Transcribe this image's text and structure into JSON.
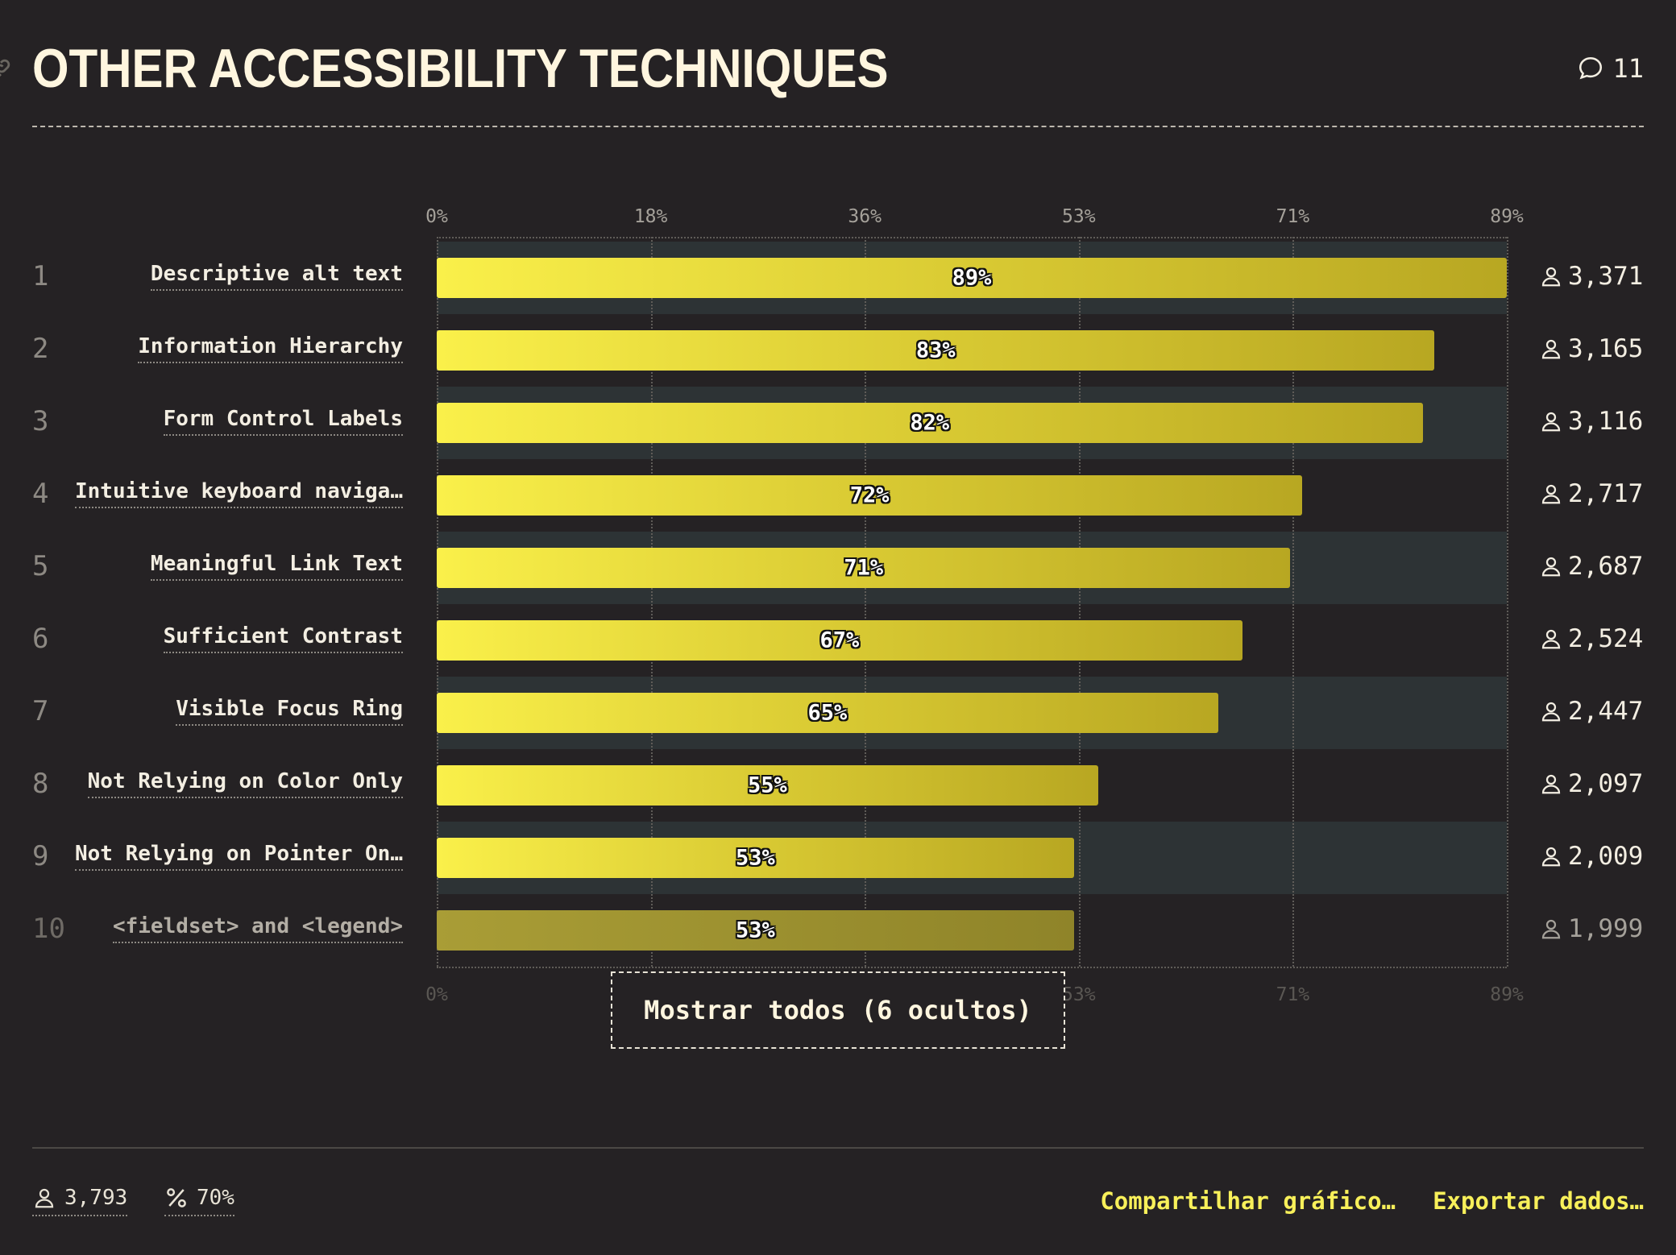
{
  "header": {
    "title": "OTHER ACCESSIBILITY TECHNIQUES",
    "comment_count": "11"
  },
  "axis_ticks": [
    "0%",
    "18%",
    "36%",
    "53%",
    "71%",
    "89%"
  ],
  "show_all_label": "Mostrar todos (6 ocultos)",
  "footer": {
    "respondents": "3,793",
    "percent": "70%",
    "share_label": "Compartilhar gráfico…",
    "export_label": "Exportar dados…"
  },
  "colors": {
    "background": "#252224",
    "bar_start": "#faf04a",
    "bar_end": "#b8a722",
    "stripe": "#2d3335",
    "action": "#f8f05a"
  },
  "chart_data": {
    "type": "bar",
    "orientation": "horizontal",
    "xlim": [
      0,
      89
    ],
    "categories": [
      "Descriptive alt text",
      "Information Hierarchy",
      "Form Control Labels",
      "Intuitive keyboard naviga…",
      "Meaningful Link Text",
      "Sufficient Contrast",
      "Visible Focus Ring",
      "Not Relying on Color Only",
      "Not Relying on Pointer On…",
      "<fieldset> and <legend>"
    ],
    "ranks": [
      "1",
      "2",
      "3",
      "4",
      "5",
      "6",
      "7",
      "8",
      "9",
      "10"
    ],
    "values": [
      89,
      83,
      82,
      72,
      71,
      67,
      65,
      55,
      53,
      53
    ],
    "value_labels": [
      "89%",
      "83%",
      "82%",
      "72%",
      "71%",
      "67%",
      "65%",
      "55%",
      "53%",
      "53%"
    ],
    "counts": [
      "3,371",
      "3,165",
      "3,116",
      "2,717",
      "2,687",
      "2,524",
      "2,447",
      "2,097",
      "2,009",
      "1,999"
    ]
  }
}
